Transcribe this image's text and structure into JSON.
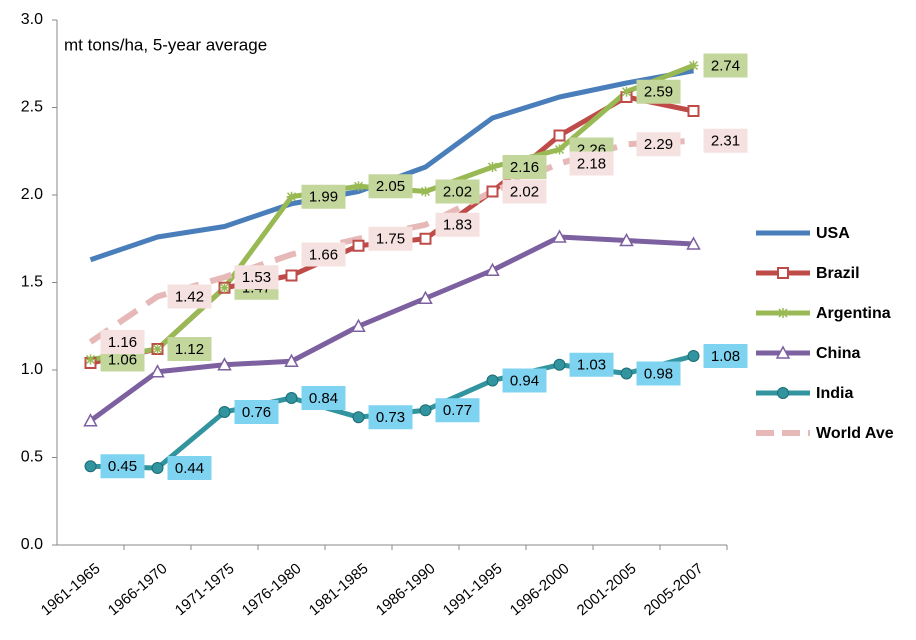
{
  "chart_data": {
    "type": "line",
    "annotation": "mt tons/ha, 5-year average",
    "categories": [
      "1961-1965",
      "1966-1970",
      "1971-1975",
      "1976-1980",
      "1981-1985",
      "1986-1990",
      "1991-1995",
      "1996-2000",
      "2001-2005",
      "2005-2007"
    ],
    "ylim": [
      0,
      3
    ],
    "yticks": [
      {
        "value": 0,
        "label": "0.0"
      },
      0.5,
      {
        "value": 1,
        "label": "1.0"
      },
      1.5,
      {
        "value": 2,
        "label": "2.0"
      },
      2.5,
      {
        "value": 3,
        "label": "3.0"
      }
    ],
    "grid": false,
    "legend": "right",
    "series": [
      {
        "name": "USA",
        "color": "#4a7ebb",
        "marker": "none",
        "values": [
          1.63,
          1.76,
          1.82,
          1.95,
          2.02,
          2.16,
          2.44,
          2.56,
          2.64,
          2.71
        ]
      },
      {
        "name": "Brazil",
        "color": "#be4b48",
        "marker": "square",
        "values": [
          1.04,
          1.12,
          1.47,
          1.54,
          1.71,
          1.75,
          2.02,
          2.34,
          2.56,
          2.48
        ]
      },
      {
        "name": "Argentina",
        "color": "#98b954",
        "marker": "star",
        "data_labels": true,
        "label_color": "#c3d69b",
        "values": [
          1.06,
          1.12,
          1.47,
          1.99,
          2.05,
          2.02,
          2.16,
          2.26,
          2.59,
          2.74
        ]
      },
      {
        "name": "China",
        "color": "#7d60a0",
        "marker": "triangle",
        "values": [
          0.71,
          0.99,
          1.03,
          1.05,
          1.25,
          1.41,
          1.57,
          1.76,
          1.74,
          1.72
        ]
      },
      {
        "name": "India",
        "color": "#31949e",
        "marker": "circle",
        "data_labels": true,
        "label_color": "#7dd3f0",
        "values": [
          0.45,
          0.44,
          0.76,
          0.84,
          0.73,
          0.77,
          0.94,
          1.03,
          0.98,
          1.08
        ]
      },
      {
        "name": "World Ave",
        "color": "#e6b9b8",
        "marker": "none",
        "dashed": true,
        "data_labels": true,
        "label_color": "#f5e1e0",
        "values": [
          1.16,
          1.42,
          1.53,
          1.66,
          1.75,
          1.83,
          2.02,
          2.18,
          2.29,
          2.31
        ]
      }
    ]
  }
}
